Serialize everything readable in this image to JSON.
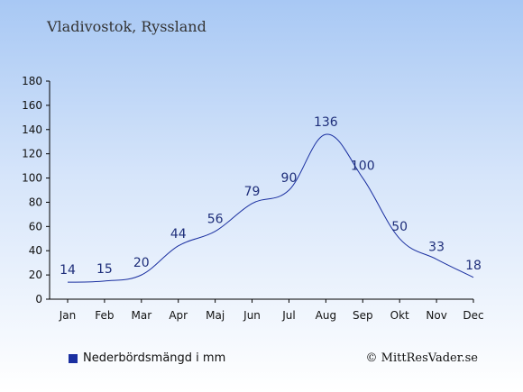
{
  "title": "Vladivostok, Ryssland",
  "legend_label": "Nederbördsmängd i mm",
  "copyright": "© MittResVader.se",
  "colors": {
    "line": "#1a2fa0",
    "label": "#1e2e7a",
    "axis": "#000000"
  },
  "chart_data": {
    "type": "line",
    "title": "Vladivostok, Ryssland",
    "xlabel": "",
    "ylabel": "",
    "categories": [
      "Jan",
      "Feb",
      "Mar",
      "Apr",
      "Maj",
      "Jun",
      "Jul",
      "Aug",
      "Sep",
      "Okt",
      "Nov",
      "Dec"
    ],
    "series": [
      {
        "name": "Nederbördsmängd i mm",
        "values": [
          14,
          15,
          20,
          44,
          56,
          79,
          90,
          136,
          100,
          50,
          33,
          18
        ]
      }
    ],
    "ylim": [
      0,
      180
    ],
    "yticks": [
      0,
      20,
      40,
      60,
      80,
      100,
      120,
      140,
      160,
      180
    ],
    "grid": false,
    "legend_position": "bottom-left"
  }
}
